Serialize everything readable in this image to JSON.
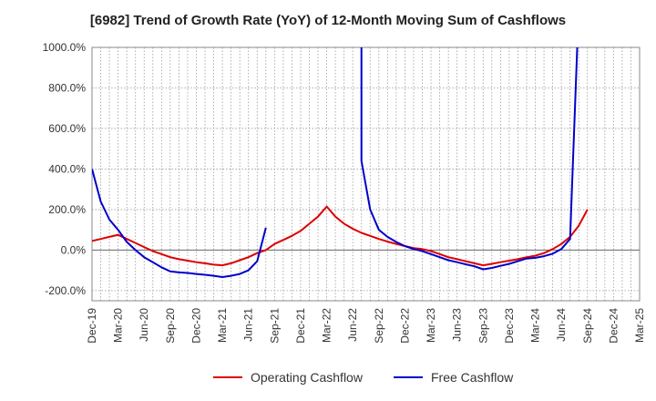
{
  "chart_data": {
    "type": "line",
    "title": "[6982]  Trend of Growth Rate (YoY) of 12-Month Moving Sum of Cashflows",
    "xlabel": "",
    "ylabel": "",
    "ylim": [
      -250,
      1000
    ],
    "y_ticks": [
      -200,
      0,
      200,
      400,
      600,
      800,
      1000
    ],
    "y_tick_labels": [
      "-200.0%",
      "0.0%",
      "200.0%",
      "400.0%",
      "600.0%",
      "800.0%",
      "1000.0%"
    ],
    "x_tick_labels": [
      "Dec-19",
      "Mar-20",
      "Jun-20",
      "Sep-20",
      "Dec-20",
      "Mar-21",
      "Jun-21",
      "Sep-21",
      "Dec-21",
      "Mar-22",
      "Jun-22",
      "Sep-22",
      "Dec-22",
      "Mar-23",
      "Jun-23",
      "Sep-23",
      "Dec-23",
      "Mar-24",
      "Jun-24",
      "Sep-24",
      "Dec-24",
      "Mar-25"
    ],
    "x_start": "Dec-19",
    "grid": true,
    "legend_position": "bottom",
    "series": [
      {
        "name": "Operating Cashflow",
        "color": "#dd0000",
        "points": [
          [
            "Dec-19",
            45
          ],
          [
            "Jan-20",
            55
          ],
          [
            "Feb-20",
            65
          ],
          [
            "Mar-20",
            75
          ],
          [
            "Apr-20",
            55
          ],
          [
            "May-20",
            35
          ],
          [
            "Jun-20",
            15
          ],
          [
            "Jul-20",
            -5
          ],
          [
            "Aug-20",
            -20
          ],
          [
            "Sep-20",
            -35
          ],
          [
            "Oct-20",
            -45
          ],
          [
            "Nov-20",
            -52
          ],
          [
            "Dec-20",
            -60
          ],
          [
            "Jan-21",
            -65
          ],
          [
            "Feb-21",
            -72
          ],
          [
            "Mar-21",
            -75
          ],
          [
            "Apr-21",
            -65
          ],
          [
            "May-21",
            -50
          ],
          [
            "Jun-21",
            -35
          ],
          [
            "Jul-21",
            -15
          ],
          [
            "Aug-21",
            0
          ],
          [
            "Sep-21",
            30
          ],
          [
            "Oct-21",
            50
          ],
          [
            "Nov-21",
            70
          ],
          [
            "Dec-21",
            95
          ],
          [
            "Jan-22",
            130
          ],
          [
            "Feb-22",
            165
          ],
          [
            "Mar-22",
            215
          ],
          [
            "Apr-22",
            165
          ],
          [
            "May-22",
            130
          ],
          [
            "Jun-22",
            105
          ],
          [
            "Jul-22",
            85
          ],
          [
            "Aug-22",
            70
          ],
          [
            "Sep-22",
            55
          ],
          [
            "Oct-22",
            42
          ],
          [
            "Nov-22",
            30
          ],
          [
            "Dec-22",
            20
          ],
          [
            "Jan-23",
            10
          ],
          [
            "Feb-23",
            5
          ],
          [
            "Mar-23",
            -5
          ],
          [
            "Apr-23",
            -20
          ],
          [
            "May-23",
            -35
          ],
          [
            "Jun-23",
            -45
          ],
          [
            "Jul-23",
            -55
          ],
          [
            "Aug-23",
            -65
          ],
          [
            "Sep-23",
            -75
          ],
          [
            "Oct-23",
            -68
          ],
          [
            "Nov-23",
            -60
          ],
          [
            "Dec-23",
            -52
          ],
          [
            "Jan-24",
            -45
          ],
          [
            "Feb-24",
            -35
          ],
          [
            "Mar-24",
            -28
          ],
          [
            "Apr-24",
            -15
          ],
          [
            "May-24",
            5
          ],
          [
            "Jun-24",
            30
          ],
          [
            "Jul-24",
            65
          ],
          [
            "Aug-24",
            120
          ],
          [
            "Sep-24",
            200
          ]
        ]
      },
      {
        "name": "Free Cashflow",
        "color": "#0000cc",
        "segments": [
          [
            [
              "Dec-19",
              400
            ],
            [
              "Jan-20",
              240
            ],
            [
              "Feb-20",
              150
            ],
            [
              "Mar-20",
              100
            ],
            [
              "Apr-20",
              40
            ],
            [
              "May-20",
              0
            ],
            [
              "Jun-20",
              -35
            ],
            [
              "Jul-20",
              -60
            ],
            [
              "Aug-20",
              -85
            ],
            [
              "Sep-20",
              -105
            ],
            [
              "Oct-20",
              -110
            ],
            [
              "Nov-20",
              -113
            ],
            [
              "Dec-20",
              -118
            ],
            [
              "Jan-21",
              -122
            ],
            [
              "Feb-21",
              -127
            ],
            [
              "Mar-21",
              -133
            ],
            [
              "Apr-21",
              -127
            ],
            [
              "May-21",
              -118
            ],
            [
              "Jun-21",
              -100
            ],
            [
              "Jul-21",
              -55
            ],
            [
              "Aug-21",
              110
            ]
          ],
          [
            [
              "Jul-22",
              1200
            ],
            [
              "Jul-22",
              440
            ],
            [
              "Aug-22",
              200
            ],
            [
              "Sep-22",
              100
            ],
            [
              "Oct-22",
              65
            ],
            [
              "Nov-22",
              40
            ],
            [
              "Dec-22",
              20
            ],
            [
              "Jan-23",
              5
            ],
            [
              "Feb-23",
              -5
            ],
            [
              "Mar-23",
              -20
            ],
            [
              "Apr-23",
              -35
            ],
            [
              "May-23",
              -50
            ],
            [
              "Jun-23",
              -60
            ],
            [
              "Jul-23",
              -70
            ],
            [
              "Aug-23",
              -80
            ],
            [
              "Sep-23",
              -95
            ],
            [
              "Oct-23",
              -88
            ],
            [
              "Nov-23",
              -78
            ],
            [
              "Dec-23",
              -68
            ],
            [
              "Jan-24",
              -55
            ],
            [
              "Feb-24",
              -42
            ],
            [
              "Mar-24",
              -38
            ],
            [
              "Apr-24",
              -30
            ],
            [
              "May-24",
              -18
            ],
            [
              "Jun-24",
              5
            ],
            [
              "Jul-24",
              55
            ],
            [
              "Aug-24",
              1200
            ]
          ]
        ]
      }
    ]
  }
}
